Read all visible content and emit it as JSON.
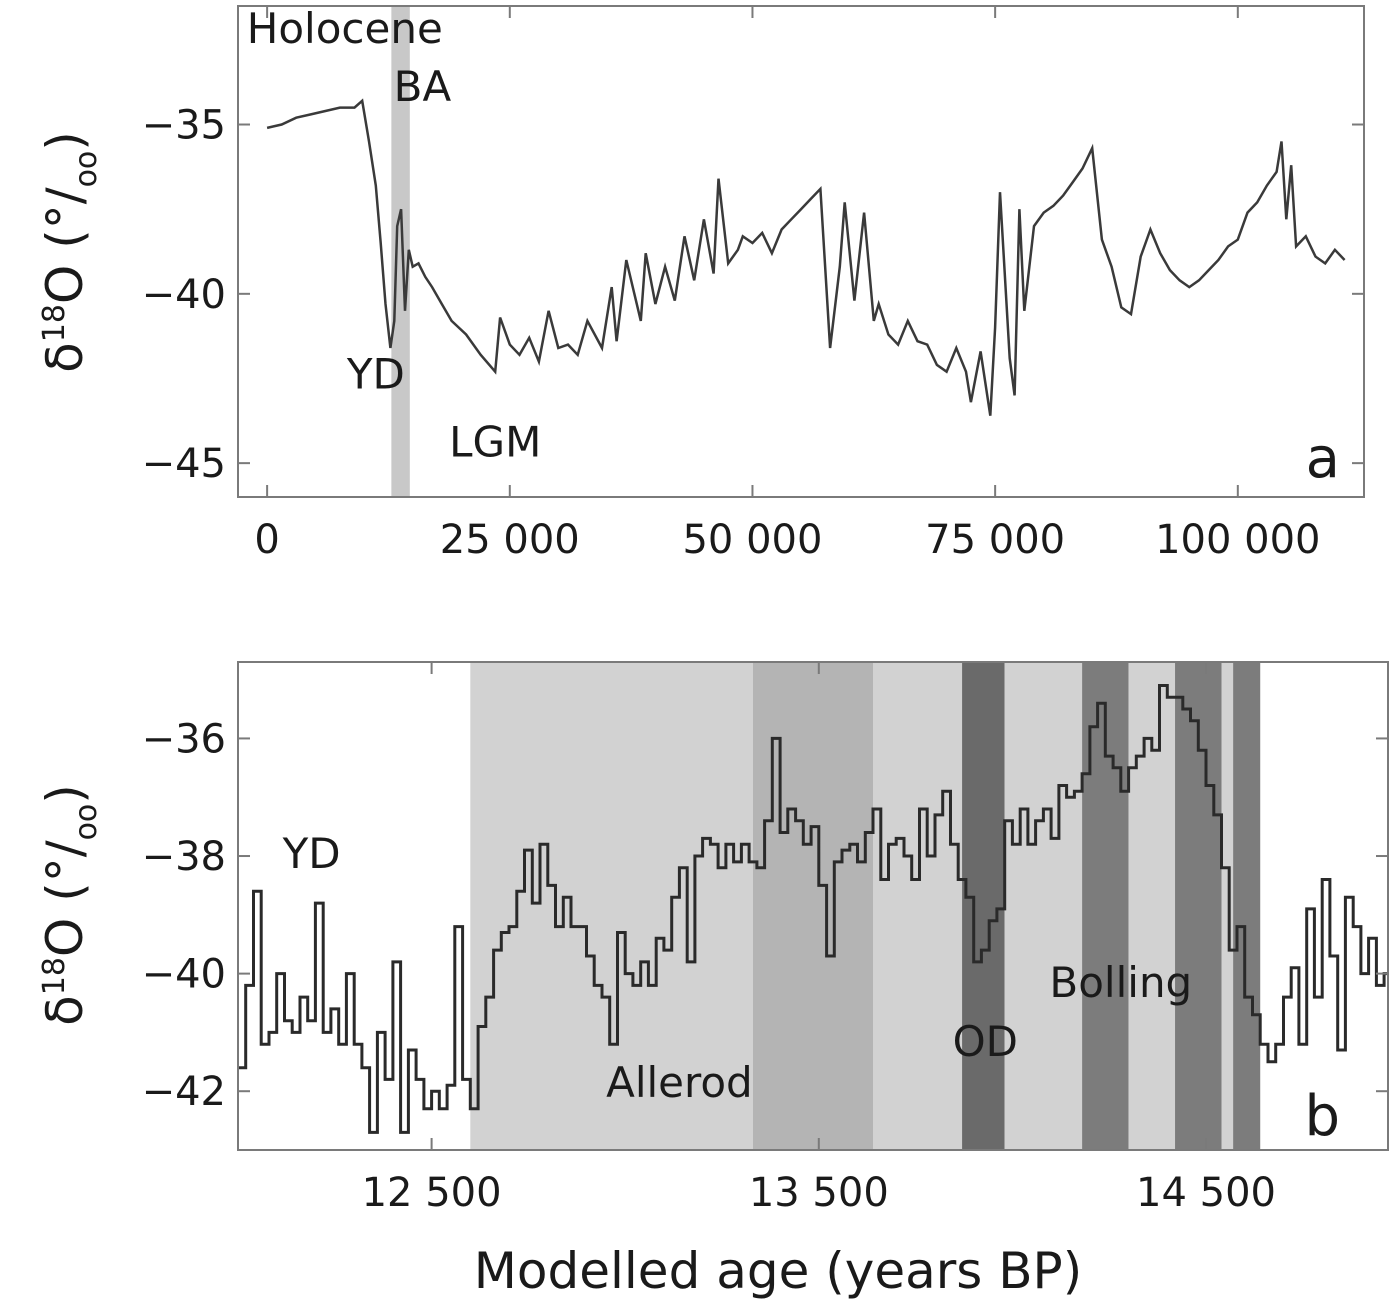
{
  "x_axis_label": "Modelled age (years BP)",
  "y_axis_label": {
    "prefix": "δ",
    "sup": "18",
    "suffix": "O (°/",
    "sub": "oo",
    "close": ")"
  },
  "colors": {
    "text": "#1a1a1a",
    "frame": "#7a7a7a",
    "line_a": "#3a3a3a",
    "line_b": "#2a2a2a",
    "band_highlight": "#c8c8c8",
    "shade_light": "#d2d2d2",
    "shade_mid": "#b4b4b4",
    "shade_dark": "#7c7c7c",
    "shade_darker": "#6a6a6a"
  },
  "chart_data": [
    {
      "panel": "a",
      "type": "line",
      "xlim": [
        -3000,
        113000
      ],
      "ylim": [
        -46,
        -31.5
      ],
      "x_ticks": [
        0,
        25000,
        50000,
        75000,
        100000
      ],
      "x_tick_labels": [
        "0",
        "25 000",
        "50 000",
        "75 000",
        "100 000"
      ],
      "y_ticks": [
        -35,
        -40,
        -45
      ],
      "y_tick_labels": [
        "−35",
        "−40",
        "−45"
      ],
      "highlight_band": [
        12800,
        14700
      ],
      "annotations": [
        {
          "text": "Holocene",
          "x": 8000,
          "y": -32.6
        },
        {
          "text": "BA",
          "x": 16000,
          "y": -34.3
        },
        {
          "text": "YD",
          "x": 11200,
          "y": -42.8
        },
        {
          "text": "LGM",
          "x": 23500,
          "y": -44.8
        }
      ],
      "series": [
        {
          "x": [
            0,
            1500,
            3000,
            4500,
            6000,
            7500,
            9000,
            9800,
            10500,
            11200,
            11700,
            12200,
            12700,
            13100,
            13400,
            13800,
            14200,
            14600,
            15000,
            15600,
            16300,
            17000,
            18000,
            19000,
            20500,
            22000,
            23500,
            24000,
            25000,
            26000,
            27000,
            28000,
            29000,
            30000,
            31000,
            32000,
            33000,
            34500,
            35500,
            36000,
            37000,
            38500,
            39000,
            40000,
            41000,
            42000,
            43000,
            44000,
            45000,
            46000,
            46500,
            47500,
            48500,
            49000,
            50000,
            51000,
            52000,
            53000,
            54000,
            55000,
            56000,
            57000,
            58000,
            59000,
            59500,
            60500,
            61500,
            62500,
            63000,
            64000,
            65000,
            66000,
            67000,
            68000,
            69000,
            70000,
            71000,
            72000,
            72500,
            73500,
            74500,
            75000,
            75500,
            76500,
            77000,
            77500,
            78000,
            79000,
            80000,
            81000,
            82000,
            83000,
            84000,
            85000,
            86000,
            87000,
            88000,
            89000,
            90000,
            91000,
            92000,
            93000,
            94000,
            95000,
            96000,
            97000,
            98000,
            99000,
            100000,
            101000,
            102000,
            103000,
            104000,
            104500,
            105000,
            105500,
            106000,
            107000,
            108000,
            109000,
            110000,
            111000
          ],
          "values": [
            -35.1,
            -35.0,
            -34.8,
            -34.7,
            -34.6,
            -34.5,
            -34.5,
            -34.3,
            -35.5,
            -36.8,
            -38.5,
            -40.3,
            -41.6,
            -40.8,
            -38.0,
            -37.5,
            -40.5,
            -38.7,
            -39.2,
            -39.1,
            -39.5,
            -39.8,
            -40.3,
            -40.8,
            -41.2,
            -41.8,
            -42.3,
            -40.7,
            -41.5,
            -41.8,
            -41.3,
            -42.0,
            -40.5,
            -41.6,
            -41.5,
            -41.8,
            -40.8,
            -41.6,
            -39.8,
            -41.4,
            -39.0,
            -40.8,
            -38.8,
            -40.3,
            -39.2,
            -40.2,
            -38.3,
            -39.6,
            -37.8,
            -39.4,
            -36.6,
            -39.1,
            -38.7,
            -38.3,
            -38.5,
            -38.2,
            -38.8,
            -38.1,
            -37.8,
            -37.5,
            -37.2,
            -36.9,
            -41.6,
            -39.2,
            -37.3,
            -40.2,
            -37.6,
            -40.8,
            -40.3,
            -41.2,
            -41.5,
            -40.8,
            -41.4,
            -41.5,
            -42.1,
            -42.3,
            -41.6,
            -42.3,
            -43.2,
            -41.7,
            -43.6,
            -41.0,
            -37.0,
            -41.9,
            -43.0,
            -37.5,
            -40.5,
            -38.0,
            -37.6,
            -37.4,
            -37.1,
            -36.7,
            -36.3,
            -35.7,
            -38.4,
            -39.2,
            -40.4,
            -40.6,
            -38.9,
            -38.1,
            -38.8,
            -39.3,
            -39.6,
            -39.8,
            -39.6,
            -39.3,
            -39.0,
            -38.6,
            -38.4,
            -37.6,
            -37.3,
            -36.8,
            -36.4,
            -35.5,
            -37.8,
            -36.2,
            -38.6,
            -38.3,
            -38.9,
            -39.1,
            -38.7,
            -39.0
          ]
        }
      ]
    },
    {
      "panel": "b",
      "type": "line",
      "xlim": [
        12000,
        14970
      ],
      "ylim": [
        -43,
        -34.7
      ],
      "x_ticks": [
        12500,
        13500,
        14500
      ],
      "x_tick_labels": [
        "12 500",
        "13 500",
        "14 500"
      ],
      "y_ticks": [
        -36,
        -38,
        -40,
        -42
      ],
      "y_tick_labels": [
        "−36",
        "−38",
        "−40",
        "−42"
      ],
      "shaded_intervals": [
        {
          "from": 12600,
          "to": 13330,
          "shade": "light"
        },
        {
          "from": 13330,
          "to": 13640,
          "shade": "mid"
        },
        {
          "from": 13640,
          "to": 13870,
          "shade": "light"
        },
        {
          "from": 13870,
          "to": 13980,
          "shade": "darker"
        },
        {
          "from": 13980,
          "to": 14180,
          "shade": "light"
        },
        {
          "from": 14180,
          "to": 14300,
          "shade": "dark"
        },
        {
          "from": 14300,
          "to": 14420,
          "shade": "light"
        },
        {
          "from": 14420,
          "to": 14540,
          "shade": "dark"
        },
        {
          "from": 14540,
          "to": 14570,
          "shade": "light"
        },
        {
          "from": 14570,
          "to": 14640,
          "shade": "dark"
        }
      ],
      "annotations": [
        {
          "text": "YD",
          "x": 12190,
          "y": -38.2
        },
        {
          "text": "Allerod",
          "x": 13140,
          "y": -42.1
        },
        {
          "text": "OD",
          "x": 13930,
          "y": -41.4
        },
        {
          "text": "Bolling",
          "x": 14280,
          "y": -40.4
        }
      ],
      "series": [
        {
          "x": [
            12000,
            12020,
            12040,
            12060,
            12080,
            12100,
            12120,
            12140,
            12160,
            12180,
            12200,
            12220,
            12240,
            12260,
            12280,
            12300,
            12320,
            12340,
            12360,
            12380,
            12400,
            12420,
            12440,
            12460,
            12480,
            12500,
            12520,
            12540,
            12560,
            12580,
            12600,
            12620,
            12640,
            12660,
            12680,
            12700,
            12720,
            12740,
            12760,
            12780,
            12800,
            12820,
            12840,
            12860,
            12880,
            12900,
            12920,
            12940,
            12960,
            12980,
            13000,
            13020,
            13040,
            13060,
            13080,
            13100,
            13120,
            13140,
            13160,
            13180,
            13200,
            13220,
            13240,
            13260,
            13280,
            13300,
            13320,
            13340,
            13360,
            13380,
            13400,
            13420,
            13440,
            13460,
            13480,
            13500,
            13520,
            13540,
            13560,
            13580,
            13600,
            13620,
            13640,
            13660,
            13680,
            13700,
            13720,
            13740,
            13760,
            13780,
            13800,
            13820,
            13840,
            13860,
            13880,
            13900,
            13920,
            13940,
            13960,
            13980,
            14000,
            14020,
            14040,
            14060,
            14080,
            14100,
            14120,
            14140,
            14160,
            14180,
            14200,
            14220,
            14240,
            14260,
            14280,
            14300,
            14320,
            14340,
            14360,
            14380,
            14400,
            14420,
            14440,
            14460,
            14480,
            14500,
            14520,
            14540,
            14560,
            14580,
            14600,
            14620,
            14640,
            14660,
            14680,
            14700,
            14720,
            14740,
            14760,
            14780,
            14800,
            14820,
            14840,
            14860,
            14880,
            14900,
            14920,
            14940,
            14960
          ],
          "values": [
            -41.6,
            -40.2,
            -38.6,
            -41.2,
            -41.0,
            -40.0,
            -40.8,
            -41.0,
            -40.4,
            -40.8,
            -38.8,
            -41.0,
            -40.6,
            -41.2,
            -40.0,
            -41.2,
            -41.6,
            -42.7,
            -41.0,
            -41.8,
            -39.8,
            -42.7,
            -41.3,
            -41.8,
            -42.3,
            -42.0,
            -42.3,
            -41.9,
            -39.2,
            -41.8,
            -42.3,
            -40.9,
            -40.4,
            -39.6,
            -39.3,
            -39.2,
            -38.6,
            -37.9,
            -38.8,
            -37.8,
            -38.5,
            -39.2,
            -38.7,
            -39.2,
            -39.2,
            -39.7,
            -40.2,
            -40.4,
            -41.2,
            -39.3,
            -40.0,
            -40.2,
            -39.8,
            -40.2,
            -39.4,
            -39.6,
            -38.7,
            -38.2,
            -39.8,
            -38.0,
            -37.7,
            -37.8,
            -38.2,
            -37.8,
            -38.1,
            -37.8,
            -38.1,
            -38.2,
            -37.4,
            -36.0,
            -37.6,
            -37.2,
            -37.4,
            -37.8,
            -37.5,
            -38.5,
            -39.7,
            -38.1,
            -37.9,
            -37.8,
            -38.1,
            -37.6,
            -37.2,
            -38.4,
            -37.8,
            -37.7,
            -38.0,
            -38.4,
            -37.2,
            -38.0,
            -37.3,
            -36.9,
            -37.8,
            -38.4,
            -38.7,
            -39.8,
            -39.6,
            -39.1,
            -38.9,
            -37.4,
            -37.8,
            -37.2,
            -37.8,
            -37.4,
            -37.2,
            -37.7,
            -36.8,
            -37.0,
            -36.9,
            -36.6,
            -35.8,
            -35.4,
            -36.3,
            -36.5,
            -36.9,
            -36.5,
            -36.3,
            -36.0,
            -36.2,
            -35.1,
            -35.3,
            -35.3,
            -35.5,
            -35.7,
            -36.2,
            -36.8,
            -37.3,
            -38.2,
            -39.6,
            -39.2,
            -40.4,
            -40.7,
            -41.2,
            -41.5,
            -41.2,
            -40.4,
            -39.9,
            -41.2,
            -38.9,
            -40.4,
            -38.4,
            -39.7,
            -41.3,
            -38.7,
            -39.2,
            -40.0,
            -39.4,
            -40.2,
            -40.0
          ]
        }
      ]
    }
  ]
}
